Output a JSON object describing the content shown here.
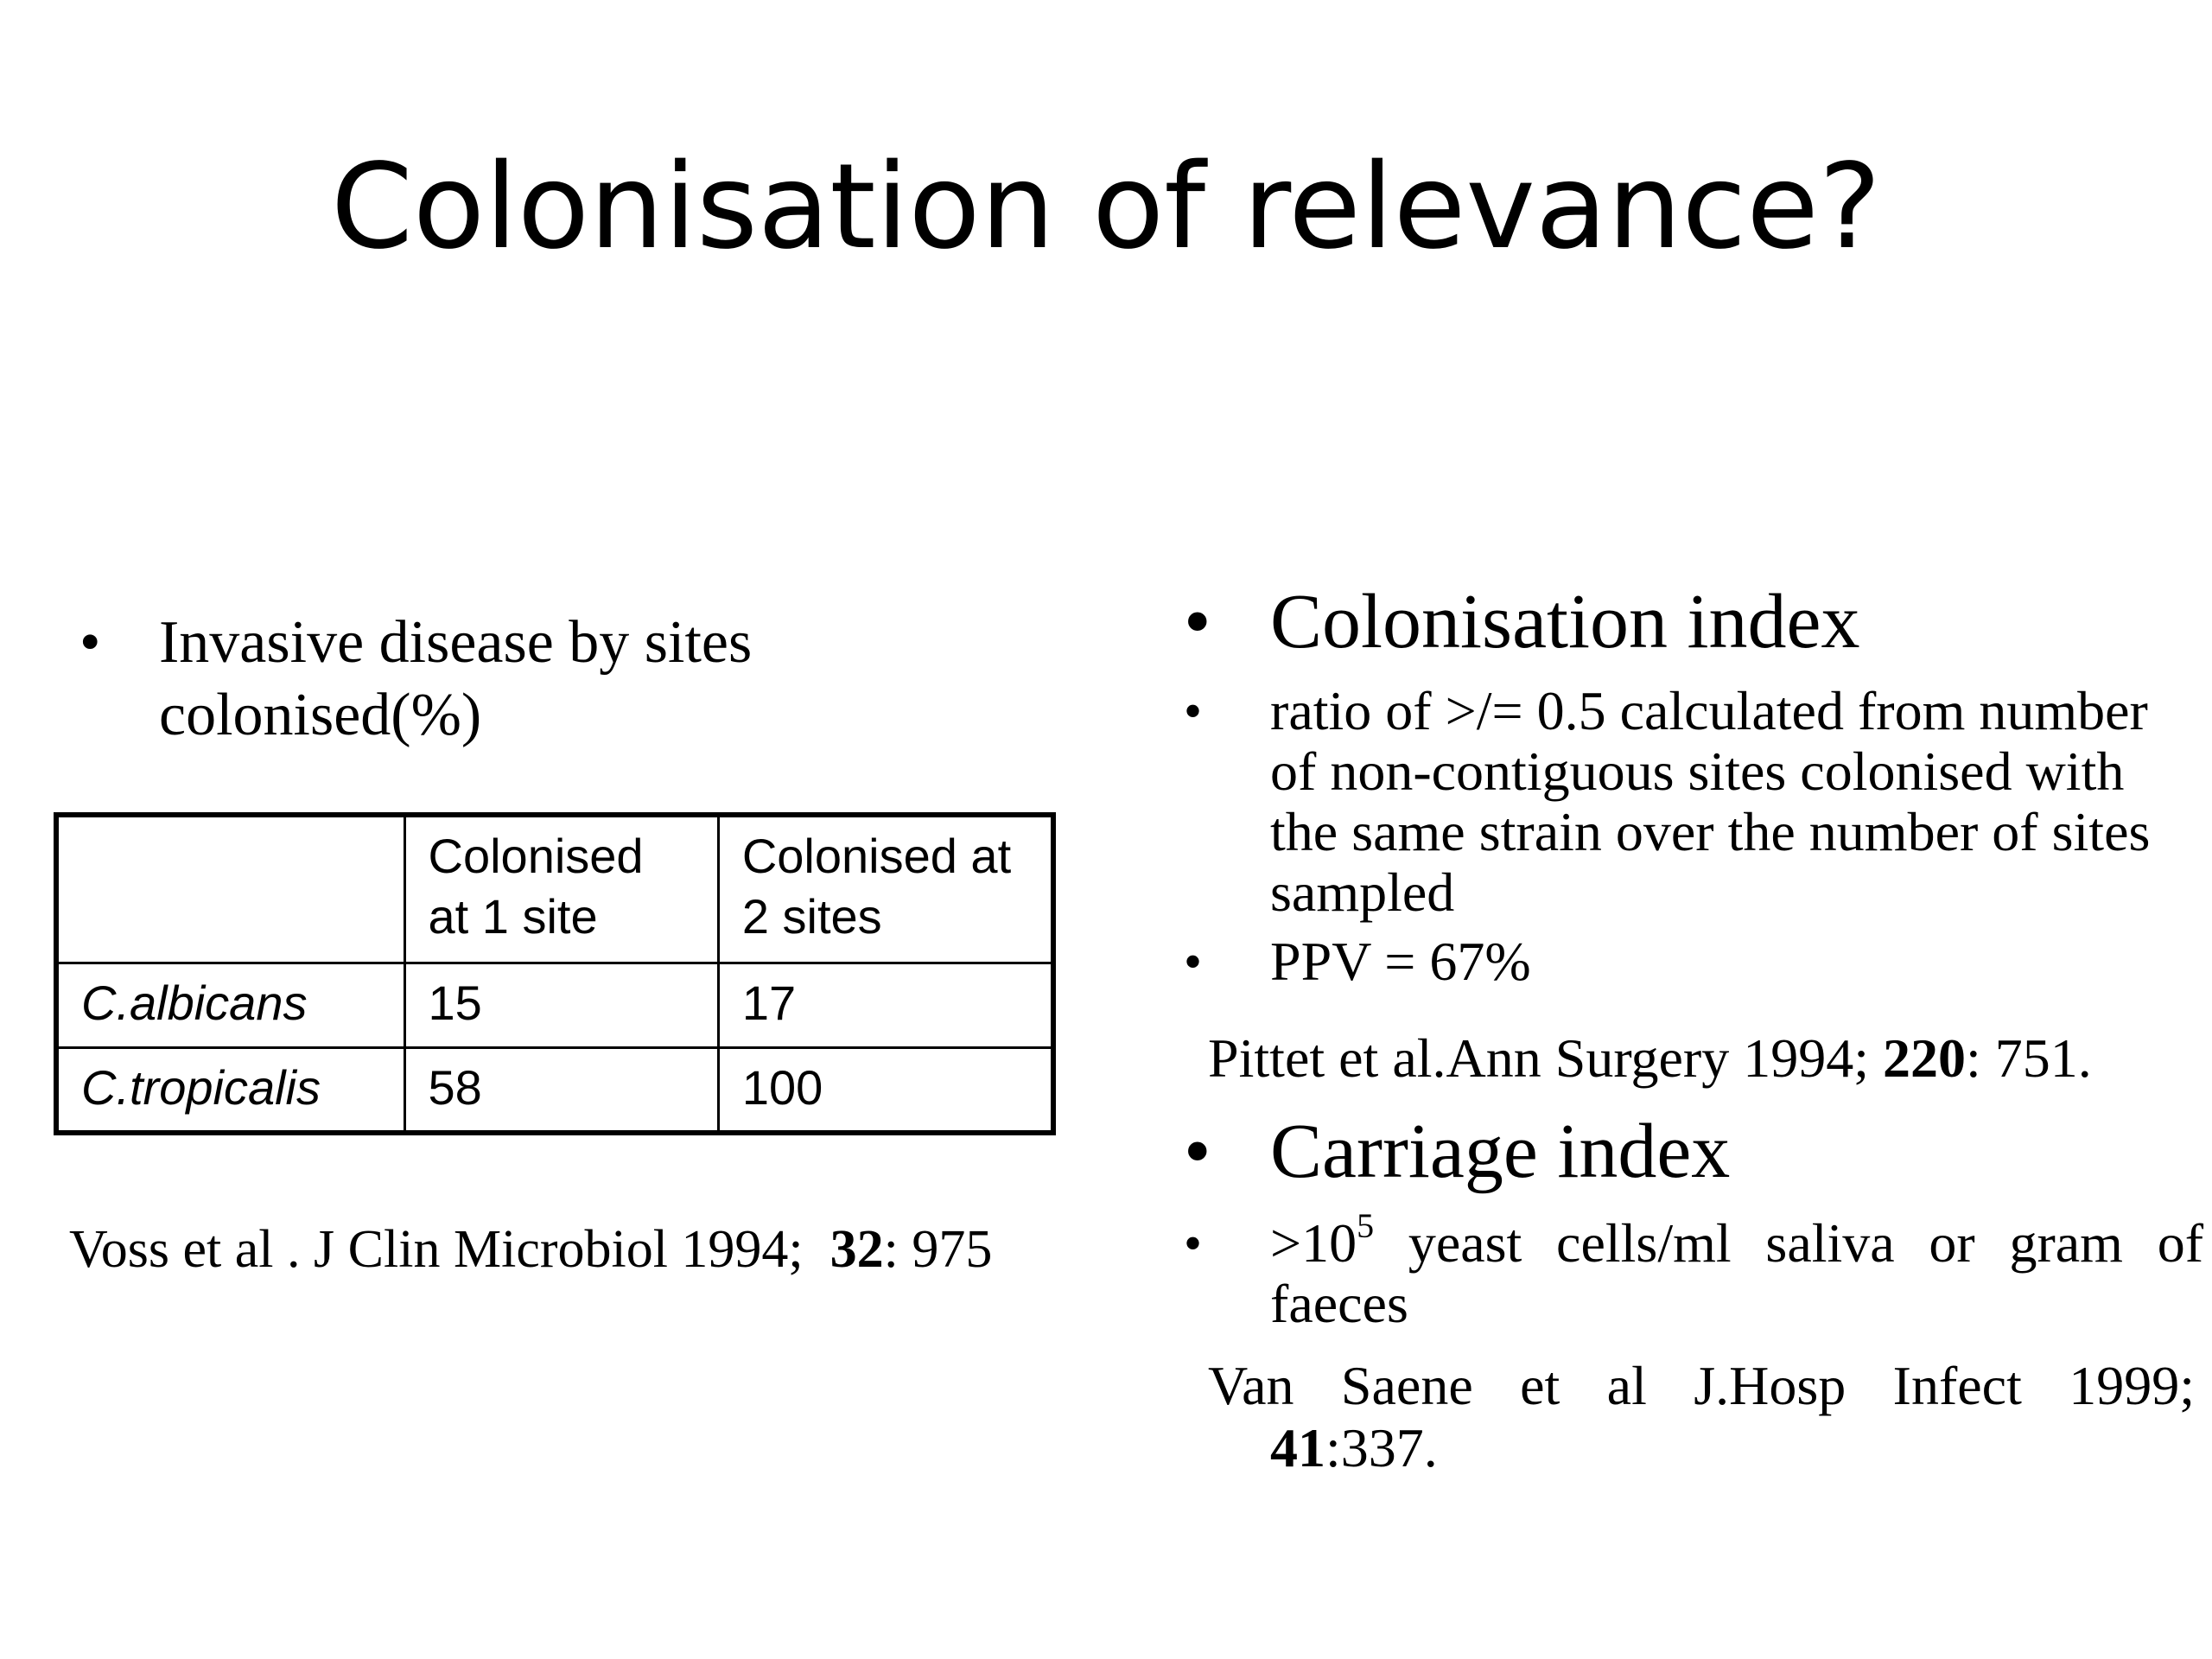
{
  "slide": {
    "title": "Colonisation of relevance?"
  },
  "left": {
    "bullet_text": "Invasive disease by sites colonised(%)",
    "table": {
      "headers": [
        "",
        "Colonised at 1 site",
        "Colonised at 2 sites"
      ],
      "rows": [
        [
          "C.albicans",
          "15",
          "17"
        ],
        [
          "C.tropicalis",
          "58",
          "100"
        ]
      ]
    },
    "reference": {
      "prefix": "Voss et al . J Clin Microbiol 1994;",
      "volume": "32",
      "suffix": ": 975"
    }
  },
  "right": {
    "heading1": "Colonisation index",
    "bullet1": "ratio of >/= 0.5 calculated from number of non-contiguous sites colonised with the same strain over the number of sites sampled",
    "bullet2": "PPV = 67%",
    "reference1": {
      "prefix": "Pittet et al.Ann Surgery 1994;",
      "volume": "220",
      "suffix": ": 751."
    },
    "heading2": "Carriage index",
    "bullet3": {
      "base": ">10",
      "exponent": "5",
      "text": "yeast cells/ml saliva or gram of faeces"
    },
    "reference2": {
      "prefix": "Van Saene et al J.Hosp Infect 1999;",
      "volume": "41",
      "suffix": ":337."
    }
  },
  "glyphs": {
    "bullet": "•"
  }
}
